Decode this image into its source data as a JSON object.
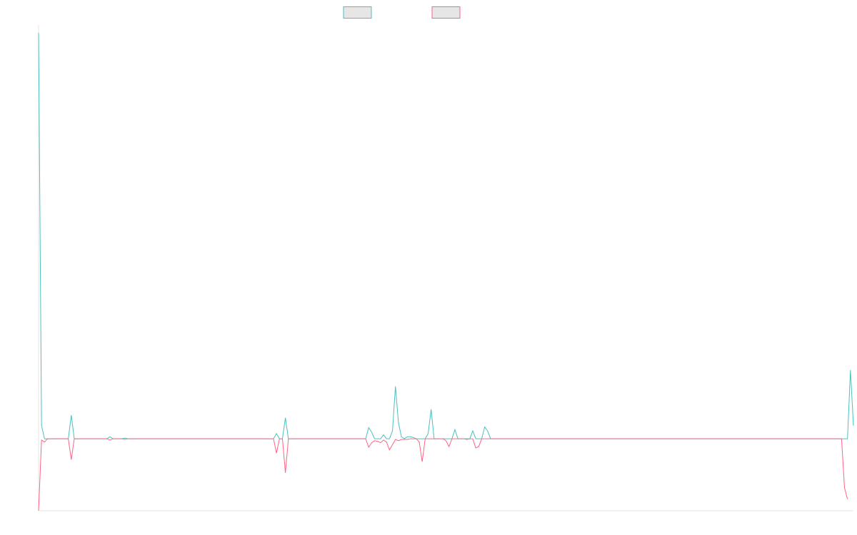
{
  "chart_data": {
    "type": "line",
    "title": "",
    "xlabel": "",
    "ylabel": "",
    "grid": false,
    "legend": "top-center",
    "ylim": [
      -11,
      63
    ],
    "series": [
      {
        "name": "",
        "color": "#4bc0c0",
        "values": [
          62,
          2,
          0,
          0,
          0,
          0,
          0,
          0,
          0,
          0,
          0,
          3.6,
          0,
          0,
          0,
          0,
          0,
          0,
          0,
          0,
          0,
          0,
          0,
          0,
          0.3,
          0,
          0,
          0,
          0,
          0.1,
          0,
          0,
          0,
          0,
          0,
          0,
          0,
          0,
          0,
          0,
          0,
          0,
          0,
          0,
          0,
          0,
          0,
          0,
          0,
          0,
          0,
          0,
          0,
          0,
          0,
          0,
          0,
          0,
          0,
          0,
          0,
          0,
          0,
          0,
          0,
          0,
          0,
          0,
          0,
          0,
          0,
          0,
          0,
          0,
          0,
          0,
          0,
          0,
          0,
          0,
          0.8,
          0,
          0,
          3.2,
          0,
          0,
          0,
          0,
          0,
          0,
          0,
          0,
          0,
          0,
          0,
          0,
          0,
          0,
          0,
          0,
          0,
          0,
          0,
          0,
          0,
          0,
          0,
          0,
          0,
          0,
          0,
          1.7,
          1,
          0,
          0,
          0,
          0.6,
          0,
          0,
          1.2,
          8,
          2.5,
          0.3,
          0,
          0.3,
          0.3,
          0.2,
          0,
          0,
          0,
          0,
          0.8,
          4.5,
          0,
          0,
          0,
          0,
          0,
          0,
          0,
          1.4,
          0,
          0,
          0,
          0,
          0,
          1.2,
          0,
          0,
          0,
          1.8,
          1.2,
          0,
          0,
          0,
          0,
          0,
          0,
          0,
          0,
          0,
          0,
          0,
          0,
          0,
          0,
          0,
          0,
          0,
          0,
          0,
          0,
          0,
          0,
          0,
          0,
          0,
          0,
          0,
          0,
          0,
          0,
          0,
          0,
          0,
          0,
          0,
          0,
          0,
          0,
          0,
          0,
          0,
          0,
          0,
          0,
          0,
          0,
          0,
          0,
          0,
          0,
          0,
          0,
          0,
          0,
          0,
          0,
          0,
          0,
          0,
          0,
          0,
          0,
          0,
          0,
          0,
          0,
          0,
          0,
          0,
          0,
          0,
          0,
          0,
          0,
          0,
          0,
          0,
          0,
          0,
          0,
          0,
          0,
          0,
          0,
          0,
          0,
          0,
          0,
          0,
          0,
          0,
          0,
          0,
          0,
          0,
          0,
          0,
          0,
          0,
          0,
          0,
          0,
          0,
          0,
          0,
          0,
          0,
          0,
          0,
          0,
          0,
          0,
          0,
          0,
          0,
          0,
          0,
          0,
          0,
          0,
          0,
          10.5,
          2
        ]
      },
      {
        "name": "",
        "color": "#ff6384",
        "values": [
          -11,
          -0.2,
          -0.5,
          0,
          0,
          0,
          0,
          0,
          0,
          0,
          0,
          -3.2,
          0,
          0,
          0,
          0,
          0,
          0,
          0,
          0,
          0,
          0,
          0,
          0,
          -0.2,
          0,
          0,
          0,
          0,
          -0.1,
          0,
          0,
          0,
          0,
          0,
          0,
          0,
          0,
          0,
          0,
          0,
          0,
          0,
          0,
          0,
          0,
          0,
          0,
          0,
          0,
          0,
          0,
          0,
          0,
          0,
          0,
          0,
          0,
          0,
          0,
          0,
          0,
          0,
          0,
          0,
          0,
          0,
          0,
          0,
          0,
          0,
          0,
          0,
          0,
          0,
          0,
          0,
          0,
          0,
          0,
          -2.2,
          0,
          0,
          -5.2,
          0,
          0,
          0,
          0,
          0,
          0,
          0,
          0,
          0,
          0,
          0,
          0,
          0,
          0,
          0,
          0,
          0,
          0,
          0,
          0,
          0,
          0,
          0,
          0,
          0,
          0,
          0,
          -1.3,
          -0.6,
          -0.3,
          -0.4,
          -0.6,
          -0.2,
          -0.5,
          -1.7,
          -0.9,
          -0.1,
          -0.3,
          -0.1,
          -0.1,
          -0.1,
          0,
          0,
          0,
          -0.5,
          -3.5,
          0,
          0,
          0,
          0,
          0,
          0,
          0,
          -0.3,
          -1.2,
          0,
          0,
          0,
          0,
          0,
          -0.1,
          0,
          0,
          -1.4,
          -1.2,
          0,
          0,
          0,
          0,
          0,
          0,
          0,
          0,
          0,
          0,
          0,
          0,
          0,
          0,
          0,
          0,
          0,
          0,
          0,
          0,
          0,
          0,
          0,
          0,
          0,
          0,
          0,
          0,
          0,
          0,
          0,
          0,
          0,
          0,
          0,
          0,
          0,
          0,
          0,
          0,
          0,
          0,
          0,
          0,
          0,
          0,
          0,
          0,
          0,
          0,
          0,
          0,
          0,
          0,
          0,
          0,
          0,
          0,
          0,
          0,
          0,
          0,
          0,
          0,
          0,
          0,
          0,
          0,
          0,
          0,
          0,
          0,
          0,
          0,
          0,
          0,
          0,
          0,
          0,
          0,
          0,
          0,
          0,
          0,
          0,
          0,
          0,
          0,
          0,
          0,
          0,
          0,
          0,
          0,
          0,
          0,
          0,
          0,
          0,
          0,
          0,
          0,
          0,
          0,
          0,
          0,
          0,
          0,
          0,
          0,
          0,
          0,
          0,
          0,
          0,
          0,
          0,
          0,
          0,
          0,
          0,
          0,
          -7.5,
          -9.2
        ]
      }
    ]
  }
}
